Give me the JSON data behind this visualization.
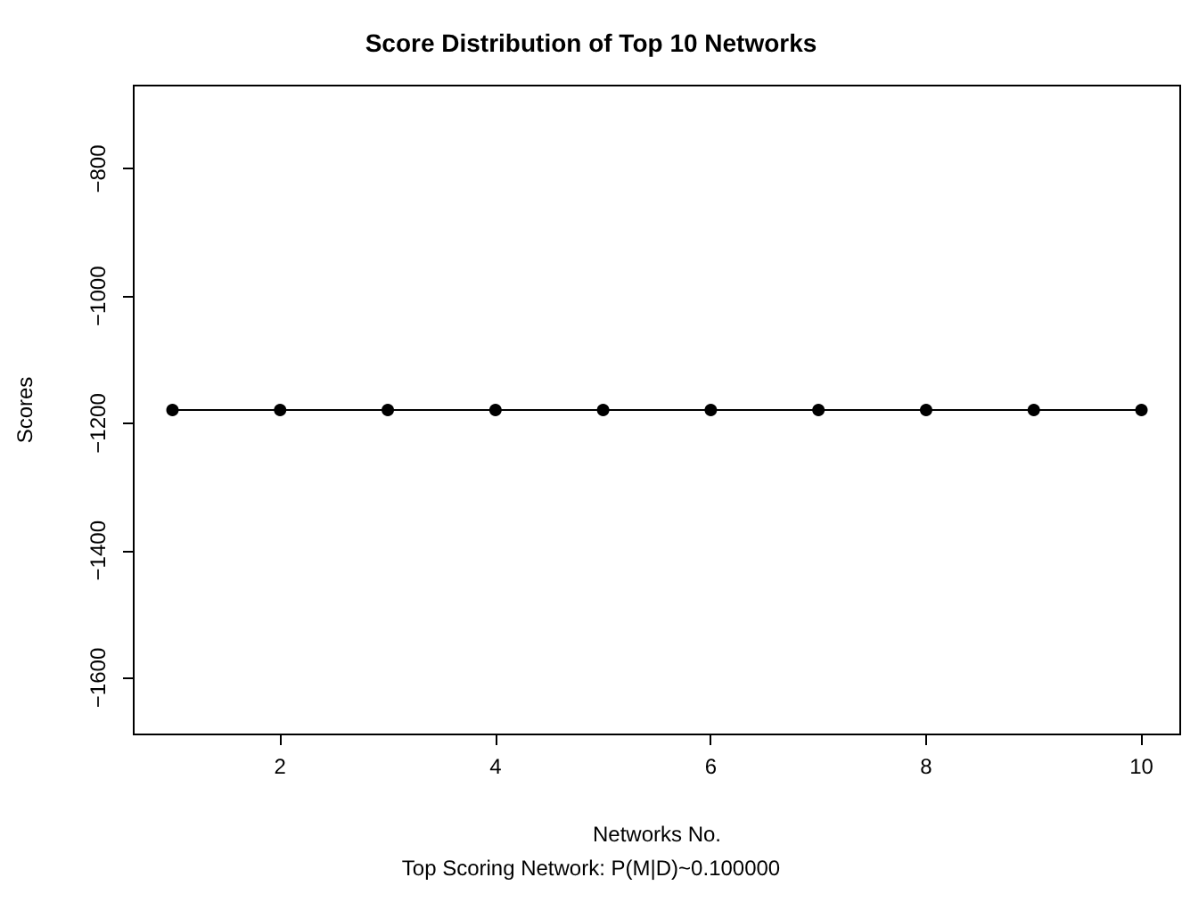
{
  "chart_data": {
    "type": "line",
    "title": "Score Distribution of Top 10 Networks",
    "xlabel": "Networks No.",
    "ylabel": "Scores",
    "annotations": [
      "Top Scoring Network: P(M|D)~0.100000"
    ],
    "x": [
      1,
      2,
      3,
      4,
      5,
      6,
      7,
      8,
      9,
      10
    ],
    "series": [
      {
        "color": "#000000",
        "values": [
          -1179,
          -1179,
          -1179,
          -1179,
          -1179,
          -1179,
          -1179,
          -1179,
          -1179,
          -1179
        ]
      }
    ],
    "xlim": [
      0.64,
      10.36
    ],
    "xticks": [
      2,
      4,
      6,
      8,
      10
    ],
    "ylim": [
      -1689,
      -669
    ],
    "yticks": [
      -1600,
      -1400,
      -1200,
      -1000,
      -800
    ],
    "grid": false,
    "marker": "circle",
    "line_style": "solid"
  }
}
